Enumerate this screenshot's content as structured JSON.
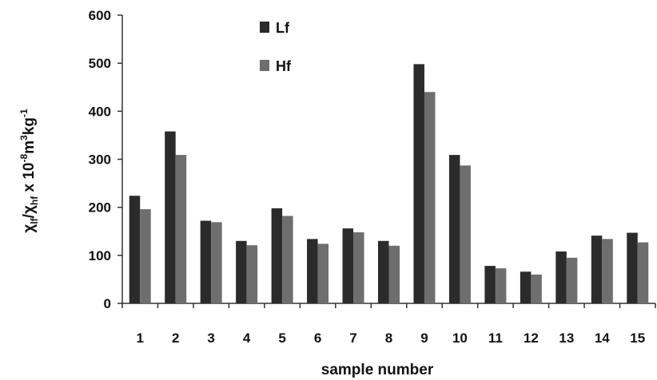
{
  "chart_data": {
    "type": "bar",
    "categories": [
      "1",
      "2",
      "3",
      "4",
      "5",
      "6",
      "7",
      "8",
      "9",
      "10",
      "11",
      "12",
      "13",
      "14",
      "15"
    ],
    "series": [
      {
        "name": "Lf",
        "color": "#2b2b2b",
        "values": [
          224,
          358,
          172,
          130,
          198,
          134,
          156,
          130,
          498,
          309,
          78,
          66,
          108,
          141,
          147
        ]
      },
      {
        "name": "Hf",
        "color": "#6e6e6e",
        "values": [
          196,
          309,
          169,
          121,
          182,
          124,
          148,
          120,
          440,
          287,
          73,
          60,
          95,
          134,
          127
        ]
      }
    ],
    "xlabel": "sample number",
    "ylabel": "χlf /χhf x 10-8m3kg-1",
    "ylabel_parts": {
      "chi1": "χ",
      "sub1": "lf",
      "slash": "/",
      "chi2": "χ",
      "sub2": "hf",
      "mult": " x 10",
      "exp1": "-8",
      "m": "m",
      "exp2": "3",
      "kg": "kg",
      "exp3": "-1"
    },
    "yticks": [
      0,
      100,
      200,
      300,
      400,
      500,
      600
    ],
    "ylim": [
      0,
      600
    ],
    "grid": false,
    "legend_position": "top-center"
  }
}
